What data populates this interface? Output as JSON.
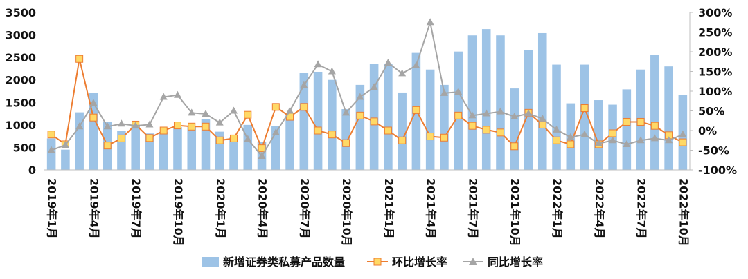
{
  "chart_data": {
    "type": "bar+line",
    "title": "",
    "categories": [
      "2019年1月",
      "2019年2月",
      "2019年3月",
      "2019年4月",
      "2019年5月",
      "2019年6月",
      "2019年7月",
      "2019年8月",
      "2019年9月",
      "2019年10月",
      "2019年11月",
      "2019年12月",
      "2020年1月",
      "2020年2月",
      "2020年3月",
      "2020年4月",
      "2020年5月",
      "2020年6月",
      "2020年7月",
      "2020年8月",
      "2020年9月",
      "2020年10月",
      "2020年11月",
      "2020年12月",
      "2021年1月",
      "2021年2月",
      "2021年3月",
      "2021年4月",
      "2021年5月",
      "2021年6月",
      "2021年7月",
      "2021年8月",
      "2021年9月",
      "2021年10月",
      "2021年11月",
      "2021年12月",
      "2022年1月",
      "2022年2月",
      "2022年3月",
      "2022年4月",
      "2022年5月",
      "2022年6月",
      "2022年7月",
      "2022年8月",
      "2022年9月",
      "2022年10月"
    ],
    "x_tick_labels": [
      "2019年1月",
      "2019年4月",
      "2019年7月",
      "2019年10月",
      "2020年1月",
      "2020年4月",
      "2020年7月",
      "2020年10月",
      "2021年1月",
      "2021年4月",
      "2021年7月",
      "2021年10月",
      "2022年1月",
      "2022年4月",
      "2022年7月",
      "2022年10月"
    ],
    "left_axis": {
      "ylim": [
        0,
        3500
      ],
      "ticks": [
        "0",
        "500",
        "1000",
        "1500",
        "2000",
        "2500",
        "3000",
        "3500"
      ]
    },
    "right_axis": {
      "ylim": [
        -100,
        300
      ],
      "ticks": [
        "-100%",
        "-50%",
        "0%",
        "50%",
        "100%",
        "150%",
        "200%",
        "250%",
        "300%"
      ]
    },
    "series": [
      {
        "name": "新增证券类私募产品数量",
        "type": "bar",
        "axis": "left",
        "color": "#9DC3E6",
        "values": [
          700,
          450,
          1280,
          1710,
          1060,
          860,
          1000,
          810,
          840,
          950,
          970,
          1130,
          850,
          720,
          1000,
          620,
          980,
          1230,
          2150,
          2180,
          2000,
          1350,
          1890,
          2350,
          2360,
          1720,
          2600,
          2230,
          1890,
          2630,
          2990,
          3130,
          2990,
          1810,
          2660,
          3040,
          2340,
          1480,
          2340,
          1550,
          1450,
          1790,
          2230,
          2560,
          2300,
          1670
        ]
      },
      {
        "name": "环比增长率",
        "type": "line",
        "axis": "right",
        "color": "#ED7D31",
        "marker": "square",
        "marker_fill": "#FFD966",
        "values": [
          -10,
          -35,
          182,
          33,
          -38,
          -20,
          15,
          -19,
          0,
          13,
          10,
          10,
          -25,
          -20,
          40,
          -45,
          60,
          35,
          60,
          0,
          -10,
          -32,
          38,
          23,
          0,
          -25,
          52,
          -15,
          -18,
          38,
          12,
          2,
          -5,
          -40,
          45,
          15,
          -25,
          -35,
          57,
          -35,
          -7,
          22,
          22,
          12,
          -12,
          -30
        ]
      },
      {
        "name": "同比增长率",
        "type": "line",
        "axis": "right",
        "color": "#A5A5A5",
        "marker": "triangle",
        "values": [
          -50,
          -37,
          10,
          70,
          10,
          17,
          12,
          15,
          85,
          90,
          45,
          42,
          20,
          50,
          -22,
          -65,
          -5,
          50,
          115,
          168,
          150,
          45,
          85,
          110,
          172,
          145,
          165,
          275,
          95,
          98,
          38,
          43,
          48,
          35,
          43,
          30,
          2,
          -17,
          -10,
          -33,
          -25,
          -35,
          -25,
          -20,
          -25,
          -10
        ]
      }
    ],
    "legend": {
      "position": "bottom",
      "entries": [
        "新增证券类私募产品数量",
        "环比增长率",
        "同比增长率"
      ]
    },
    "grid": false
  }
}
